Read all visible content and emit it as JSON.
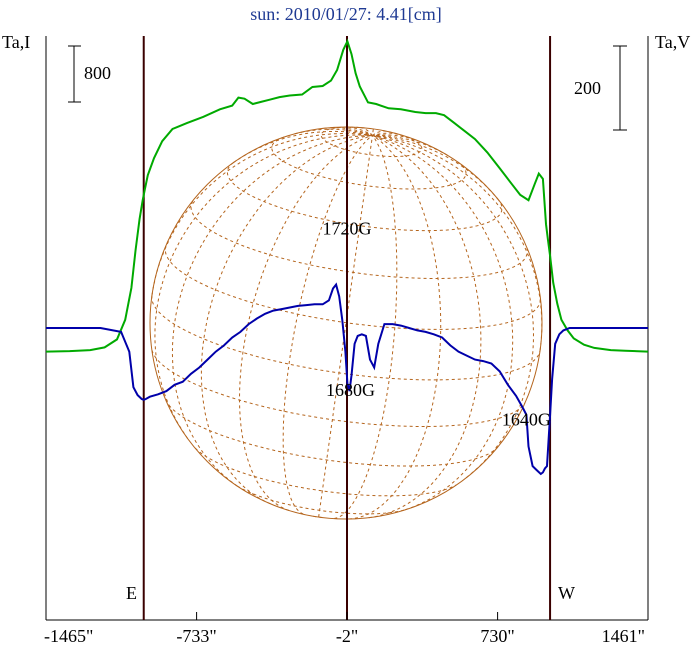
{
  "chart_data": {
    "type": "line",
    "title": "sun: 2010/01/27: 4.41[cm]",
    "left_axis_label": "Ta,I",
    "right_axis_label": "Ta,V",
    "left_scale_bar": "800",
    "right_scale_bar": "200",
    "x_ticks": [
      "-1465\"",
      "-733\"",
      "-2\"",
      "730\"",
      "1461\""
    ],
    "x_tick_values": [
      -1465,
      -733,
      -2,
      730,
      1461
    ],
    "xlim": [
      -1465,
      1461
    ],
    "limb_labels": {
      "east": "E",
      "west": "W"
    },
    "vertical_markers": [
      -990,
      -2,
      985
    ],
    "annotations": [
      {
        "text": "1720G",
        "x": -2,
        "y": 2.9
      },
      {
        "text": "1680G",
        "x": 15,
        "y": -0.9
      },
      {
        "text": "1640G",
        "x": 870,
        "y": -1.6
      }
    ],
    "series": [
      {
        "key": "stokes_i",
        "color": "#00aa00",
        "x": [
          -1465,
          -1350,
          -1250,
          -1180,
          -1120,
          -1080,
          -1050,
          -1030,
          -1010,
          -995,
          -985,
          -970,
          -940,
          -900,
          -850,
          -780,
          -700,
          -620,
          -560,
          -530,
          -500,
          -460,
          -420,
          -380,
          -330,
          -280,
          -220,
          -170,
          -120,
          -80,
          -50,
          -20,
          0,
          20,
          40,
          60,
          100,
          140,
          200,
          260,
          330,
          380,
          430,
          470,
          520,
          570,
          620,
          680,
          740,
          800,
          840,
          880,
          910,
          930,
          950,
          965,
          975,
          985,
          1000,
          1020,
          1040,
          1070,
          1100,
          1150,
          1200,
          1280,
          1350,
          1461
        ],
        "y": [
          0,
          10,
          30,
          80,
          230,
          600,
          1200,
          1900,
          2500,
          2850,
          3050,
          3320,
          3640,
          3960,
          4190,
          4300,
          4420,
          4560,
          4630,
          4780,
          4760,
          4660,
          4700,
          4740,
          4790,
          4820,
          4840,
          4980,
          5000,
          5100,
          5300,
          5680,
          5840,
          5600,
          5240,
          4990,
          4690,
          4660,
          4580,
          4560,
          4510,
          4490,
          4490,
          4450,
          4300,
          4150,
          4000,
          3750,
          3450,
          3150,
          2950,
          2850,
          3150,
          3350,
          3250,
          2400,
          2100,
          1800,
          1300,
          900,
          600,
          400,
          250,
          130,
          70,
          30,
          15,
          0
        ]
      },
      {
        "key": "stokes_v",
        "color": "#0000aa",
        "x": [
          -1465,
          -1200,
          -1100,
          -1060,
          -1040,
          -1020,
          -1000,
          -990,
          -980,
          -960,
          -920,
          -880,
          -840,
          -800,
          -760,
          -720,
          -680,
          -640,
          -600,
          -560,
          -520,
          -480,
          -440,
          -400,
          -360,
          -320,
          -280,
          -240,
          -200,
          -160,
          -120,
          -90,
          -70,
          -55,
          -40,
          -25,
          -10,
          0,
          10,
          20,
          35,
          50,
          70,
          90,
          110,
          130,
          150,
          180,
          220,
          260,
          300,
          340,
          380,
          420,
          460,
          500,
          540,
          580,
          620,
          660,
          700,
          740,
          780,
          820,
          850,
          870,
          880,
          900,
          920,
          940,
          950,
          960,
          970,
          985,
          995,
          1010,
          1030,
          1050,
          1080,
          1150,
          1300,
          1461
        ],
        "y": [
          0,
          0,
          -5,
          -30,
          -75,
          -85,
          -90,
          -91,
          -90,
          -87,
          -84,
          -80,
          -72,
          -68,
          -58,
          -50,
          -40,
          -30,
          -22,
          -12,
          -5,
          5,
          12,
          18,
          22,
          24,
          26,
          28,
          29,
          30,
          30,
          35,
          50,
          55,
          40,
          10,
          -30,
          -70,
          -80,
          -60,
          -20,
          -10,
          -8,
          -10,
          -40,
          -50,
          -20,
          5,
          5,
          3,
          0,
          -3,
          -5,
          -8,
          -12,
          -22,
          -30,
          -35,
          -40,
          -42,
          -45,
          -55,
          -72,
          -86,
          -100,
          -110,
          -150,
          -175,
          -180,
          -185,
          -183,
          -178,
          -175,
          -110,
          -65,
          -20,
          -8,
          -3,
          0,
          0,
          0,
          0
        ]
      }
    ],
    "left_ylim": [
      -5050,
      5940
    ],
    "right_ylim": [
      -370,
      370
    ]
  }
}
